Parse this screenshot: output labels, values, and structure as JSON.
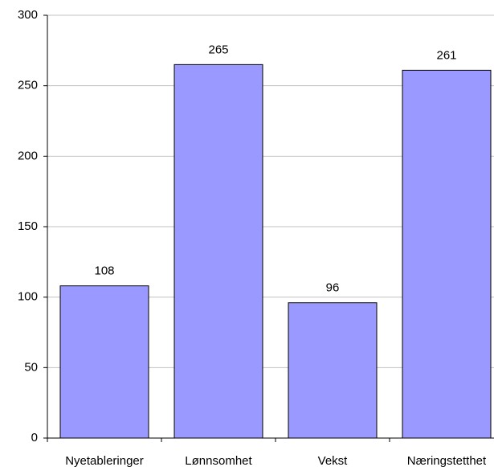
{
  "chart_data": {
    "type": "bar",
    "categories": [
      "Nyetableringer",
      "Lønnsomhet",
      "Vekst",
      "Næringstetthet"
    ],
    "values": [
      108,
      265,
      96,
      261
    ],
    "color": "#9999ff",
    "ylim": [
      0,
      300
    ],
    "yticks": [
      0,
      50,
      100,
      150,
      200,
      250,
      300
    ],
    "grid": true
  }
}
